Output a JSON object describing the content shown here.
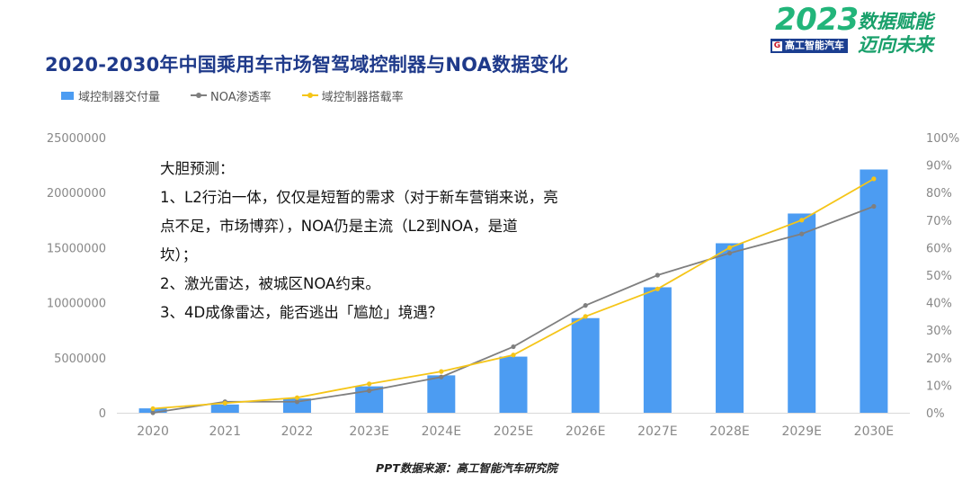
{
  "brand": {
    "year": "2023",
    "slogan_line1": "数据赋能",
    "slogan_line2": "迈向未来",
    "logo_text": "高工智能汽车"
  },
  "chart_data": {
    "type": "bar",
    "title": "2020-2030年中国乘用车市场智驾域控制器与NOA数据变化",
    "categories": [
      "2020",
      "2021",
      "2022",
      "2023E",
      "2024E",
      "2025E",
      "2026E",
      "2027E",
      "2028E",
      "2029E",
      "2030E"
    ],
    "y_left": {
      "ticks": [
        "0",
        "5000000",
        "10000000",
        "15000000",
        "20000000",
        "25000000"
      ],
      "range": [
        0,
        25000000
      ]
    },
    "y_right": {
      "ticks": [
        "0%",
        "10%",
        "20%",
        "30%",
        "40%",
        "50%",
        "60%",
        "70%",
        "80%",
        "90%",
        "100%"
      ],
      "range": [
        0,
        1
      ]
    },
    "grid": false,
    "legend_position": "top-left",
    "series": [
      {
        "name": "域控制器交付量",
        "kind": "bar",
        "axis": "left",
        "color": "#4c9cf2",
        "values": [
          400000,
          750000,
          1300000,
          2400000,
          3400000,
          5100000,
          8600000,
          11400000,
          15400000,
          18100000,
          22100000
        ]
      },
      {
        "name": "NOA渗透率",
        "kind": "line",
        "axis": "right",
        "color": "#7f7f7f",
        "values": [
          0.0,
          0.04,
          0.04,
          0.08,
          0.13,
          0.24,
          0.39,
          0.5,
          0.58,
          0.65,
          0.75
        ]
      },
      {
        "name": "域控制器搭载率",
        "kind": "line",
        "axis": "right",
        "color": "#f5c518",
        "values": [
          0.015,
          0.035,
          0.055,
          0.105,
          0.15,
          0.21,
          0.35,
          0.45,
          0.6,
          0.7,
          0.85
        ]
      }
    ],
    "annotations": [
      "大胆预测：",
      "1、L2行泊一体，仅仅是短暂的需求（对于新车营销来说，亮",
      "点不足，市场博弈），NOA仍是主流（L2到NOA，是道",
      "坎）；",
      "2、激光雷达，被城区NOA约束。",
      "3、4D成像雷达，能否逃出「尴尬」境遇？"
    ]
  },
  "source": "PPT数据来源：高工智能汽车研究院"
}
